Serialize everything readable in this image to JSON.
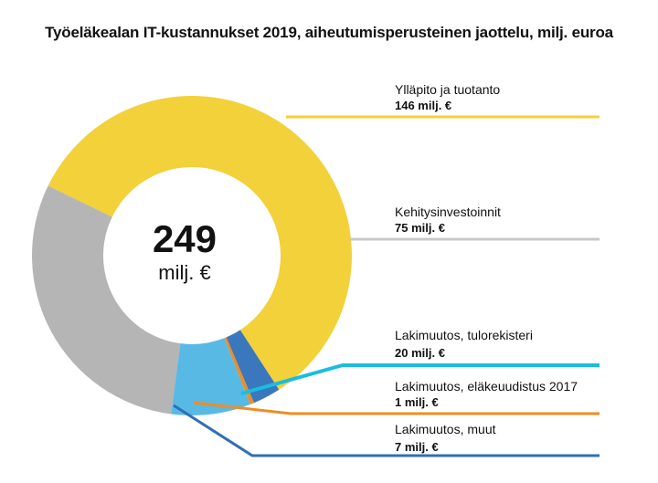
{
  "chart_data": {
    "type": "pie",
    "title": "Työeläkealan IT-kustannukset 2019, aiheutumisperusteinen jaottelu, milj. euroa",
    "total": {
      "value": "249",
      "unit": "milj. €"
    },
    "slices": [
      {
        "name": "Ylläpito ja tuotanto",
        "value": 146,
        "label": "146 milj. €",
        "color": "#f2d13a"
      },
      {
        "name": "Kehitysinvestoinnit",
        "value": 75,
        "label": "75 milj. €",
        "color": "#b5b5b5"
      },
      {
        "name": "Lakimuutos, tulorekisteri",
        "value": 20,
        "label": "20 milj. €",
        "color": "#58b9e5"
      },
      {
        "name": "Lakimuutos, eläkeuudistus 2017",
        "value": 1,
        "label": "1 milj. €",
        "color": "#f08c22"
      },
      {
        "name": "Lakimuutos, muut",
        "value": 7,
        "label": "7 milj. €",
        "color": "#3a77bd"
      }
    ],
    "leader_colors": [
      "#f2d13a",
      "#c8c8c8",
      "#19bde0",
      "#f08c22",
      "#2f6fb8"
    ]
  }
}
